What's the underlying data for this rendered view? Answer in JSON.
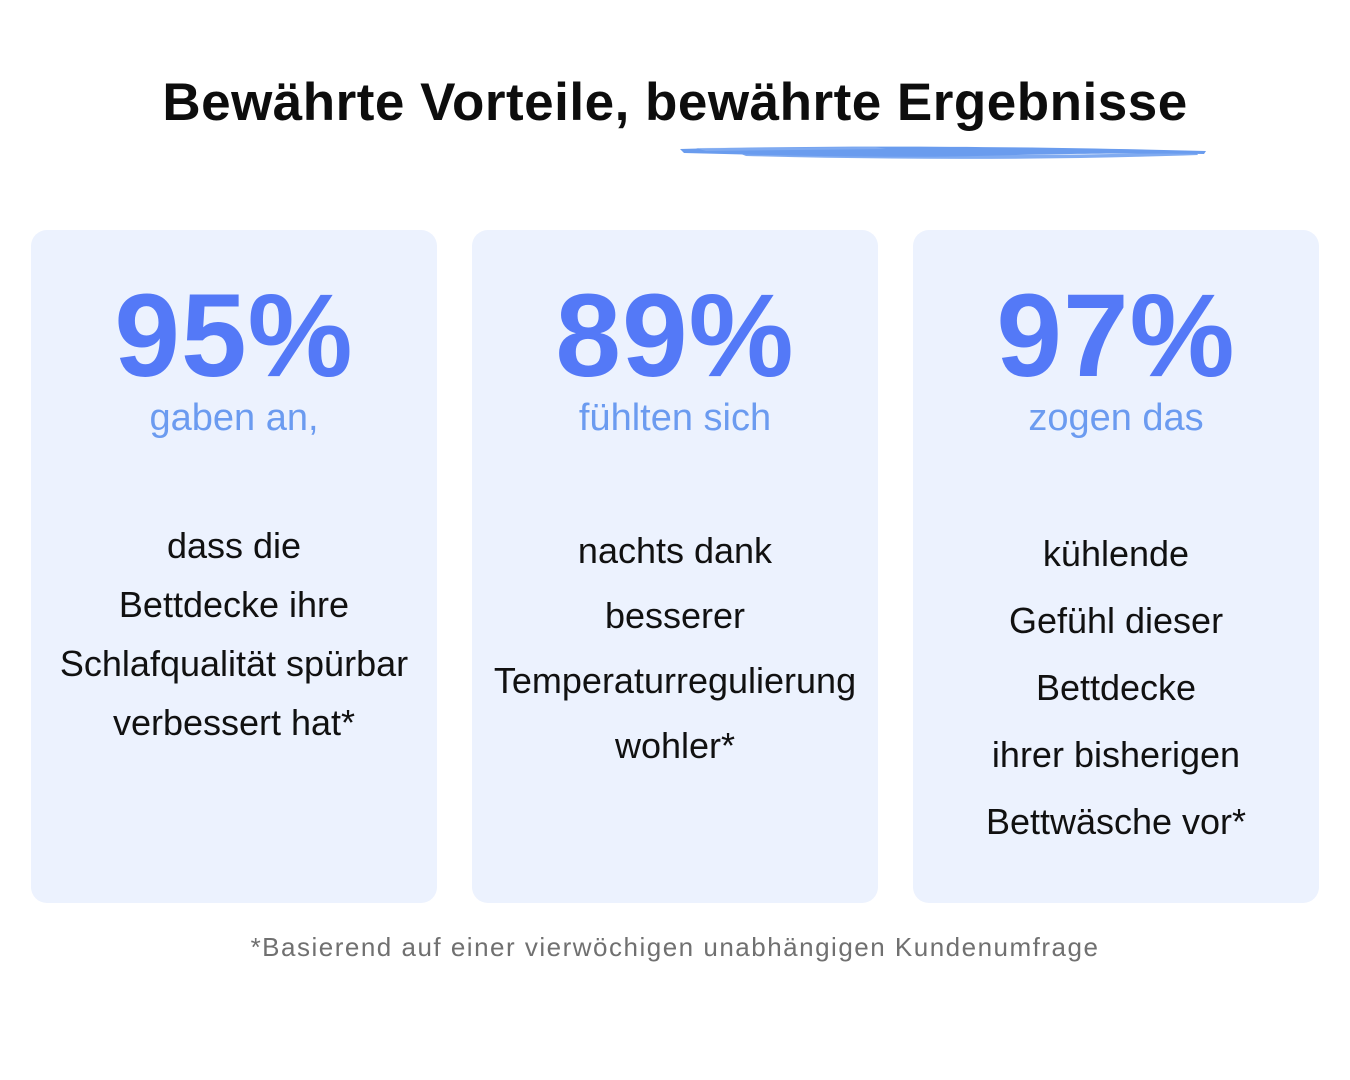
{
  "title": "Bewährte Vorteile, bewährte Ergebnisse",
  "accent_color": "#5479f7",
  "lead_color": "#6b9bf0",
  "card_background": "#ecf2fe",
  "underline_color": "#6a9cee",
  "cards": [
    {
      "stat": "95%",
      "lead": "gaben an,",
      "lines": [
        "dass die",
        "Bettdecke ihre",
        "Schlafqualität spürbar",
        "verbessert hat*"
      ]
    },
    {
      "stat": "89%",
      "lead": "fühlten sich",
      "lines": [
        "nachts dank",
        "besserer",
        "Temperaturregulierung",
        "wohler*"
      ]
    },
    {
      "stat": "97%",
      "lead": "zogen das",
      "lines": [
        "kühlende",
        "Gefühl dieser",
        "Bettdecke",
        "ihrer bisherigen",
        "Bettwäsche vor*"
      ]
    }
  ],
  "footnote": "*Basierend auf einer vierwöchigen unabhängigen Kundenumfrage"
}
